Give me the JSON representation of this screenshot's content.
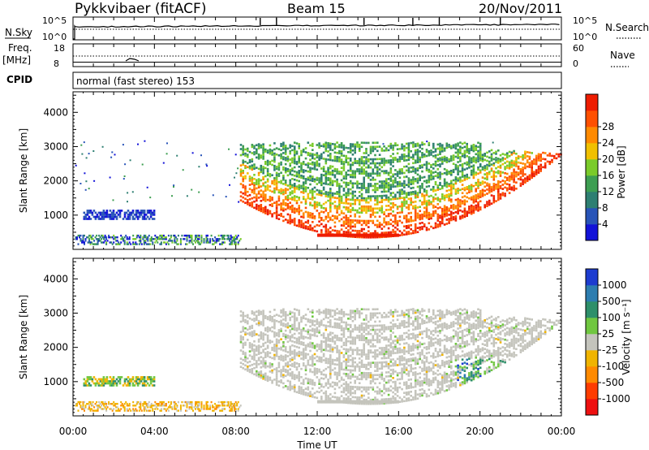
{
  "header": {
    "radar": "Pykkvibaer (fitACF)",
    "beam": "Beam 15",
    "date": "20/Nov/2011"
  },
  "top_panels": {
    "nsky_label": "N.Sky",
    "nsky_ticks": [
      "10^5",
      "10^0"
    ],
    "nsearch_label": "N.Search",
    "nsearch_ticks": [
      "10^5",
      "10^0"
    ],
    "freq_label": "Freq.",
    "freq_unit": "[MHz]",
    "freq_ticks": [
      "18",
      "8"
    ],
    "nave_label": "Nave",
    "nave_ticks": [
      "60",
      "0"
    ],
    "cpid_label": "CPID",
    "cpid_text": "normal (fast stereo) 153"
  },
  "colors": {
    "power": [
      "#1212d8",
      "#2854b8",
      "#2e7f72",
      "#3d9e52",
      "#7acb2a",
      "#f0c000",
      "#ff8a00",
      "#ff5000",
      "#ee1c00"
    ],
    "velocity": [
      "#1d3cd0",
      "#2d7db0",
      "#2e8f6a",
      "#70c740",
      "#c4c4bc",
      "#f0b400",
      "#ff8a00",
      "#ff3c00",
      "#ee1010"
    ],
    "gray": "#c4c4bc"
  },
  "chart_data": [
    {
      "type": "heatmap",
      "name": "power",
      "xlabel": "",
      "ylabel": "Slant Range [km]",
      "ylim": [
        0,
        4600
      ],
      "yticks": [
        "1000",
        "2000",
        "3000",
        "4000"
      ],
      "colorbar_label": "Power [dB]",
      "colorbar_ticks": [
        "4",
        "8",
        "12",
        "16",
        "20",
        "24",
        "28"
      ],
      "xlim": [
        "00:00",
        "24:00"
      ],
      "regions": [
        {
          "desc": "strong arc of scatter 08:00-24:00",
          "x_hours": [
            8.0,
            24.0
          ],
          "range_km": [
            800,
            3100
          ],
          "power_db": [
            8,
            30
          ]
        },
        {
          "desc": "near-range band 00:00-04:00",
          "x_hours": [
            0.5,
            4.0
          ],
          "range_km": [
            900,
            1200
          ],
          "power_db": [
            4,
            12
          ]
        },
        {
          "desc": "low-range clutter 00:00-08:00",
          "x_hours": [
            0.0,
            8.0
          ],
          "range_km": [
            180,
            500
          ],
          "power_db": [
            4,
            20
          ]
        },
        {
          "desc": "near band 12:00-16:00",
          "x_hours": [
            12.0,
            16.0
          ],
          "range_km": [
            380,
            480
          ],
          "power_db": [
            24,
            30
          ]
        }
      ]
    },
    {
      "type": "heatmap",
      "name": "velocity",
      "xlabel": "Time UT",
      "ylabel": "Slant Range [km]",
      "ylim": [
        0,
        4600
      ],
      "yticks": [
        "1000",
        "2000",
        "3000",
        "4000"
      ],
      "colorbar_label": "Velocity [m s⁻¹]",
      "colorbar_ticks": [
        "1000",
        "500",
        "100",
        "25",
        "-25",
        "-100",
        "-500",
        "-1000"
      ],
      "xticks": [
        "00:00",
        "04:00",
        "08:00",
        "12:00",
        "16:00",
        "20:00",
        "00:00"
      ],
      "xlim": [
        "00:00",
        "24:00"
      ],
      "regions": [
        {
          "desc": "ground scatter arc",
          "x_hours": [
            8.0,
            24.0
          ],
          "range_km": [
            600,
            3200
          ],
          "velocity_ms": [
            -25,
            25
          ]
        },
        {
          "desc": "positive velocities 19:00-24:00",
          "x_hours": [
            19.0,
            24.0
          ],
          "range_km": [
            900,
            1700
          ],
          "velocity_ms": [
            100,
            1000
          ]
        },
        {
          "desc": "band 00:00-04:00",
          "x_hours": [
            0.5,
            4.0
          ],
          "range_km": [
            900,
            1200
          ],
          "velocity_ms": [
            -500,
            500
          ]
        }
      ]
    }
  ]
}
